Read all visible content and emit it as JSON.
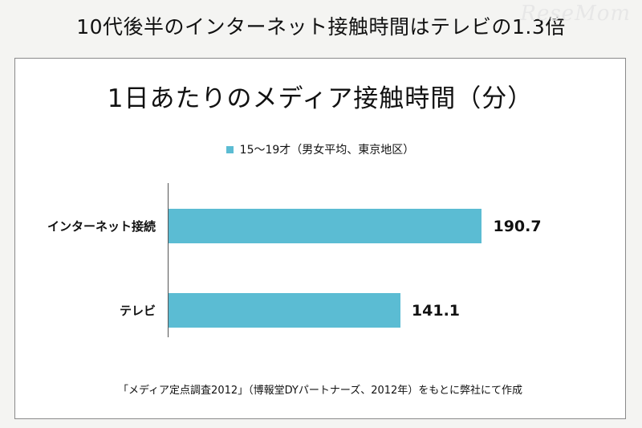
{
  "headline": "10代後半のインターネット接触時間はテレビの1.3倍",
  "watermark": "ReseMom",
  "chart_data": {
    "type": "bar",
    "orientation": "horizontal",
    "title": "1日あたりのメディア接触時間（分）",
    "categories": [
      "インターネット接続",
      "テレビ"
    ],
    "series": [
      {
        "name": "15〜19才（男女平均、東京地区）",
        "values": [
          190.7,
          141.1
        ],
        "color": "#5bbcd3"
      }
    ],
    "value_labels": [
      "190.7",
      "141.1"
    ],
    "xlim": [
      0,
      210
    ],
    "legend_position": "top-center",
    "grid": false
  },
  "source": "「メディア定点調査2012」（博報堂DYパートナーズ、2012年）をもとに弊社にて作成"
}
